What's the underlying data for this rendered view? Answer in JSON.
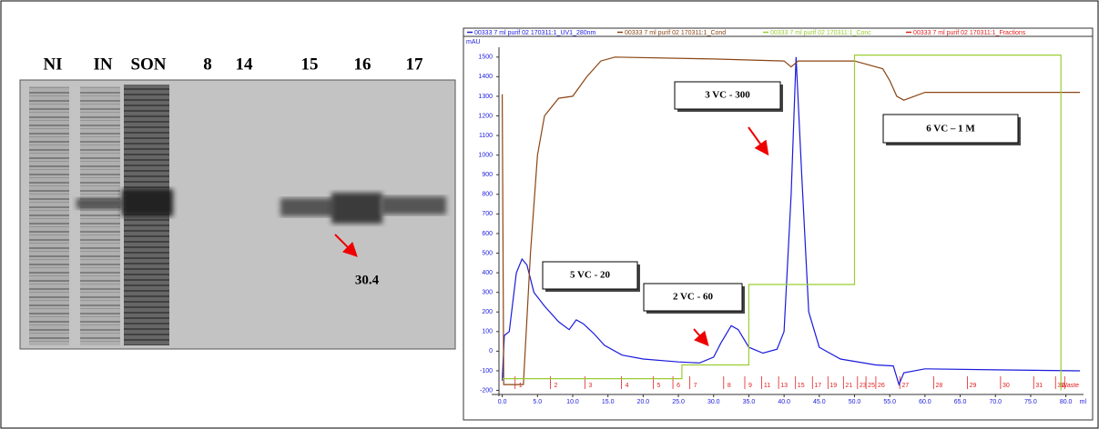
{
  "gel": {
    "lanes": [
      "NI",
      "IN",
      "SON",
      "8",
      "14",
      "15",
      "16",
      "17"
    ],
    "annotation": "30.4"
  },
  "chart_data": {
    "type": "line",
    "y_label": "mAU",
    "x_label": "ml",
    "xlim": [
      -1.5,
      82.5
    ],
    "ylim": [
      -230,
      1550
    ],
    "xticks": [
      {
        "value": 0,
        "label": "0.0"
      },
      {
        "value": 5,
        "label": "5.0"
      },
      {
        "value": 10,
        "label": "10.0"
      },
      {
        "value": 15,
        "label": "15.0"
      },
      {
        "value": 20,
        "label": "20.0"
      },
      {
        "value": 25,
        "label": "25.0"
      },
      {
        "value": 30,
        "label": "30.0"
      },
      {
        "value": 35,
        "label": "35.0"
      },
      {
        "value": 40,
        "label": "40.0"
      },
      {
        "value": 45,
        "label": "45.0"
      },
      {
        "value": 50,
        "label": "50.0"
      },
      {
        "value": 55,
        "label": "55.0"
      },
      {
        "value": 60,
        "label": "60.0"
      },
      {
        "value": 65,
        "label": "65.0"
      },
      {
        "value": 70,
        "label": "70.0"
      },
      {
        "value": 75,
        "label": "75.0"
      },
      {
        "value": 80,
        "label": "80.0"
      }
    ],
    "yticks": [
      -200,
      -100,
      0,
      100,
      200,
      300,
      400,
      500,
      600,
      700,
      800,
      900,
      1000,
      1100,
      1200,
      1300,
      1400,
      1500
    ],
    "series": [
      {
        "name": "00333 7 ml purif 02 170311:1_UV1_280nm",
        "color": "#1a1adc",
        "x": [
          0,
          0.3,
          1,
          2,
          2.8,
          3.5,
          4.5,
          6,
          8,
          9.5,
          10.5,
          11.5,
          13,
          14.5,
          17,
          20,
          25,
          28,
          30,
          31,
          32.5,
          33.5,
          35,
          37,
          39,
          40,
          41,
          41.7,
          42.5,
          43.5,
          45,
          48,
          53,
          55.5,
          56.3,
          57,
          60,
          70,
          82
        ],
        "values": [
          -150,
          80,
          100,
          400,
          470,
          440,
          300,
          230,
          150,
          110,
          160,
          140,
          90,
          30,
          -20,
          -40,
          -55,
          -60,
          -30,
          40,
          130,
          110,
          20,
          -10,
          10,
          100,
          800,
          1500,
          900,
          200,
          20,
          -40,
          -70,
          -75,
          -170,
          -110,
          -90,
          -95,
          -100
        ]
      },
      {
        "name": "00333 7 ml purif 02 170311:1_Cond",
        "color": "#8b4513",
        "x": [
          0,
          0.2,
          3,
          4,
          5,
          6,
          8,
          10,
          12,
          14,
          16,
          30,
          40,
          41,
          42,
          50,
          54,
          55,
          56,
          57,
          60,
          82
        ],
        "values": [
          1310,
          -170,
          -170,
          500,
          1000,
          1200,
          1290,
          1300,
          1400,
          1480,
          1500,
          1490,
          1480,
          1450,
          1480,
          1480,
          1440,
          1380,
          1300,
          1280,
          1320,
          1320
        ]
      },
      {
        "name": "00333 7 ml purif 02 170311:1_Conc",
        "color": "#9acd32",
        "x": [
          0,
          25.5,
          25.5,
          35,
          35,
          50,
          50,
          79.3,
          79.3
        ],
        "values": [
          -140,
          -140,
          -70,
          -70,
          340,
          340,
          1510,
          1510,
          -200
        ]
      }
    ],
    "fractions": {
      "name": "00333 7 ml purif 02 170311:1_Fractions",
      "color": "#e02020",
      "labels": [
        "1",
        "2",
        "3",
        "4",
        "5",
        "6",
        "7",
        "8",
        "9",
        "11",
        "13",
        "15",
        "17",
        "19",
        "21",
        "23",
        "25",
        "26",
        "27",
        "28",
        "29",
        "30",
        "31",
        "32",
        "Waste"
      ],
      "x": [
        2.6,
        7.6,
        12.5,
        17.7,
        22.2,
        25,
        27.4,
        32.2,
        35.2,
        37.6,
        40,
        42.4,
        44.8,
        47,
        49.2,
        51.2,
        52.4,
        53.8,
        57.2,
        62,
        66.8,
        71.5,
        76.2,
        79.3,
        80.6
      ]
    },
    "annotations": [
      "5 VC - 20",
      "2 VC - 60",
      "3 VC - 300",
      "6 VC – 1 M"
    ]
  }
}
